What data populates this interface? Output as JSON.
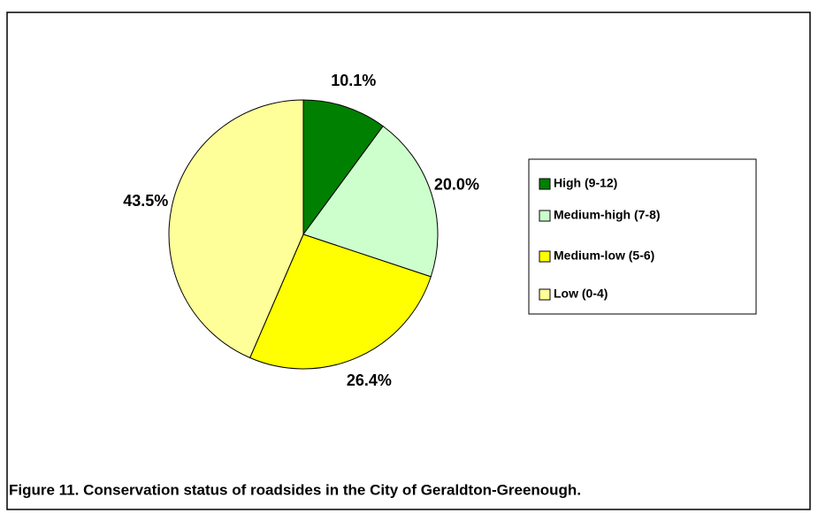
{
  "chart_data": {
    "type": "pie",
    "caption": "Figure 11. Conservation status of roadsides in the City of Geraldton-Greenough.",
    "categories": [
      "High (9-12)",
      "Medium-high (7-8)",
      "Medium-low (5-6)",
      "Low (0-4)"
    ],
    "values": [
      10.1,
      20.0,
      26.4,
      43.5
    ],
    "value_labels": [
      "10.1%",
      "20.0%",
      "26.4%",
      "43.5%"
    ],
    "colors": [
      "#008000",
      "#ccffcc",
      "#ffff00",
      "#ffff99"
    ],
    "legend": "right"
  }
}
